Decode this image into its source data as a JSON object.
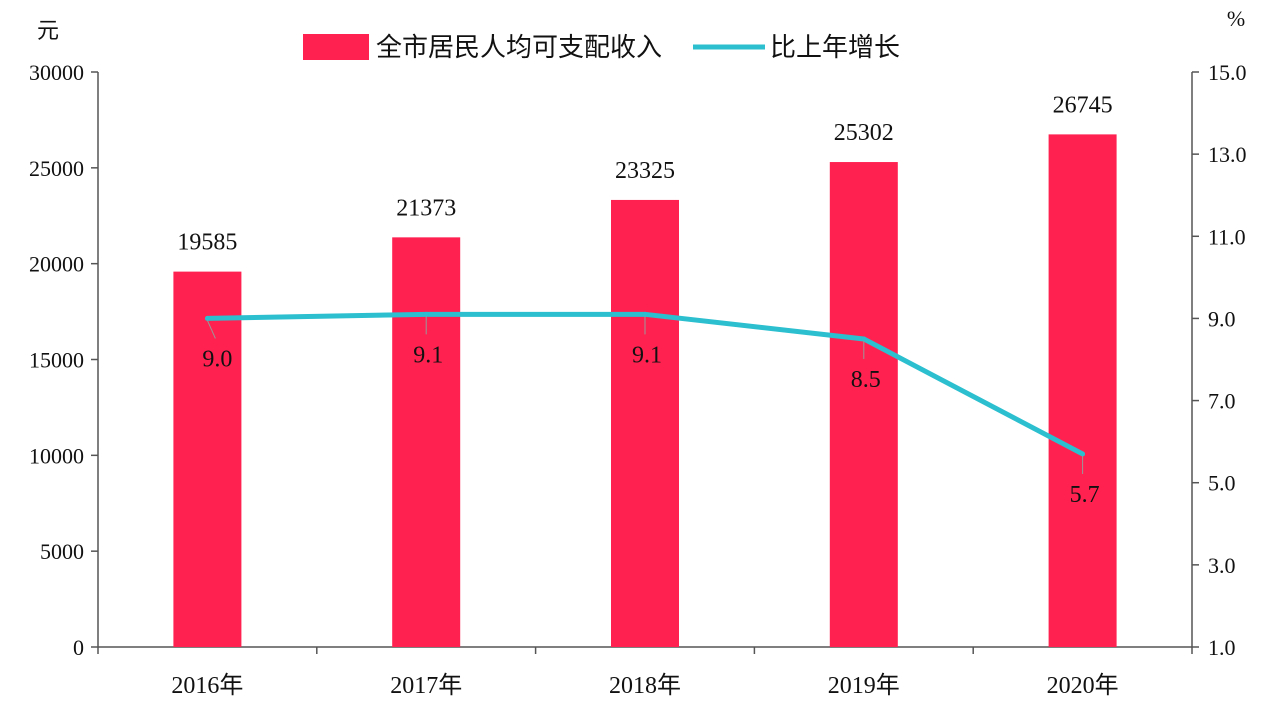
{
  "chart_data": {
    "type": "bar",
    "categories": [
      "2016年",
      "2017年",
      "2018年",
      "2019年",
      "2020年"
    ],
    "series": [
      {
        "name": "全市居民人均可支配收入",
        "type": "bar",
        "axis": "left",
        "values": [
          19585,
          21373,
          23325,
          25302,
          26745
        ],
        "color": "#ff2150"
      },
      {
        "name": "比上年增长",
        "type": "line",
        "axis": "right",
        "values": [
          9.0,
          9.1,
          9.1,
          8.5,
          5.7
        ],
        "value_labels": [
          "9.0",
          "9.1",
          "9.1",
          "8.5",
          "5.7"
        ],
        "color": "#2bbfcf"
      }
    ],
    "y_left": {
      "unit": "元",
      "ylim": [
        0,
        30000
      ],
      "ticks": [
        "0",
        "5000",
        "10000",
        "15000",
        "20000",
        "25000",
        "30000"
      ]
    },
    "y_right": {
      "unit": "%",
      "ylim": [
        1.0,
        15.0
      ],
      "ticks": [
        "1.0",
        "3.0",
        "5.0",
        "7.0",
        "9.0",
        "11.0",
        "13.0",
        "15.0"
      ]
    },
    "legend_position": "top-center",
    "grid": false
  }
}
